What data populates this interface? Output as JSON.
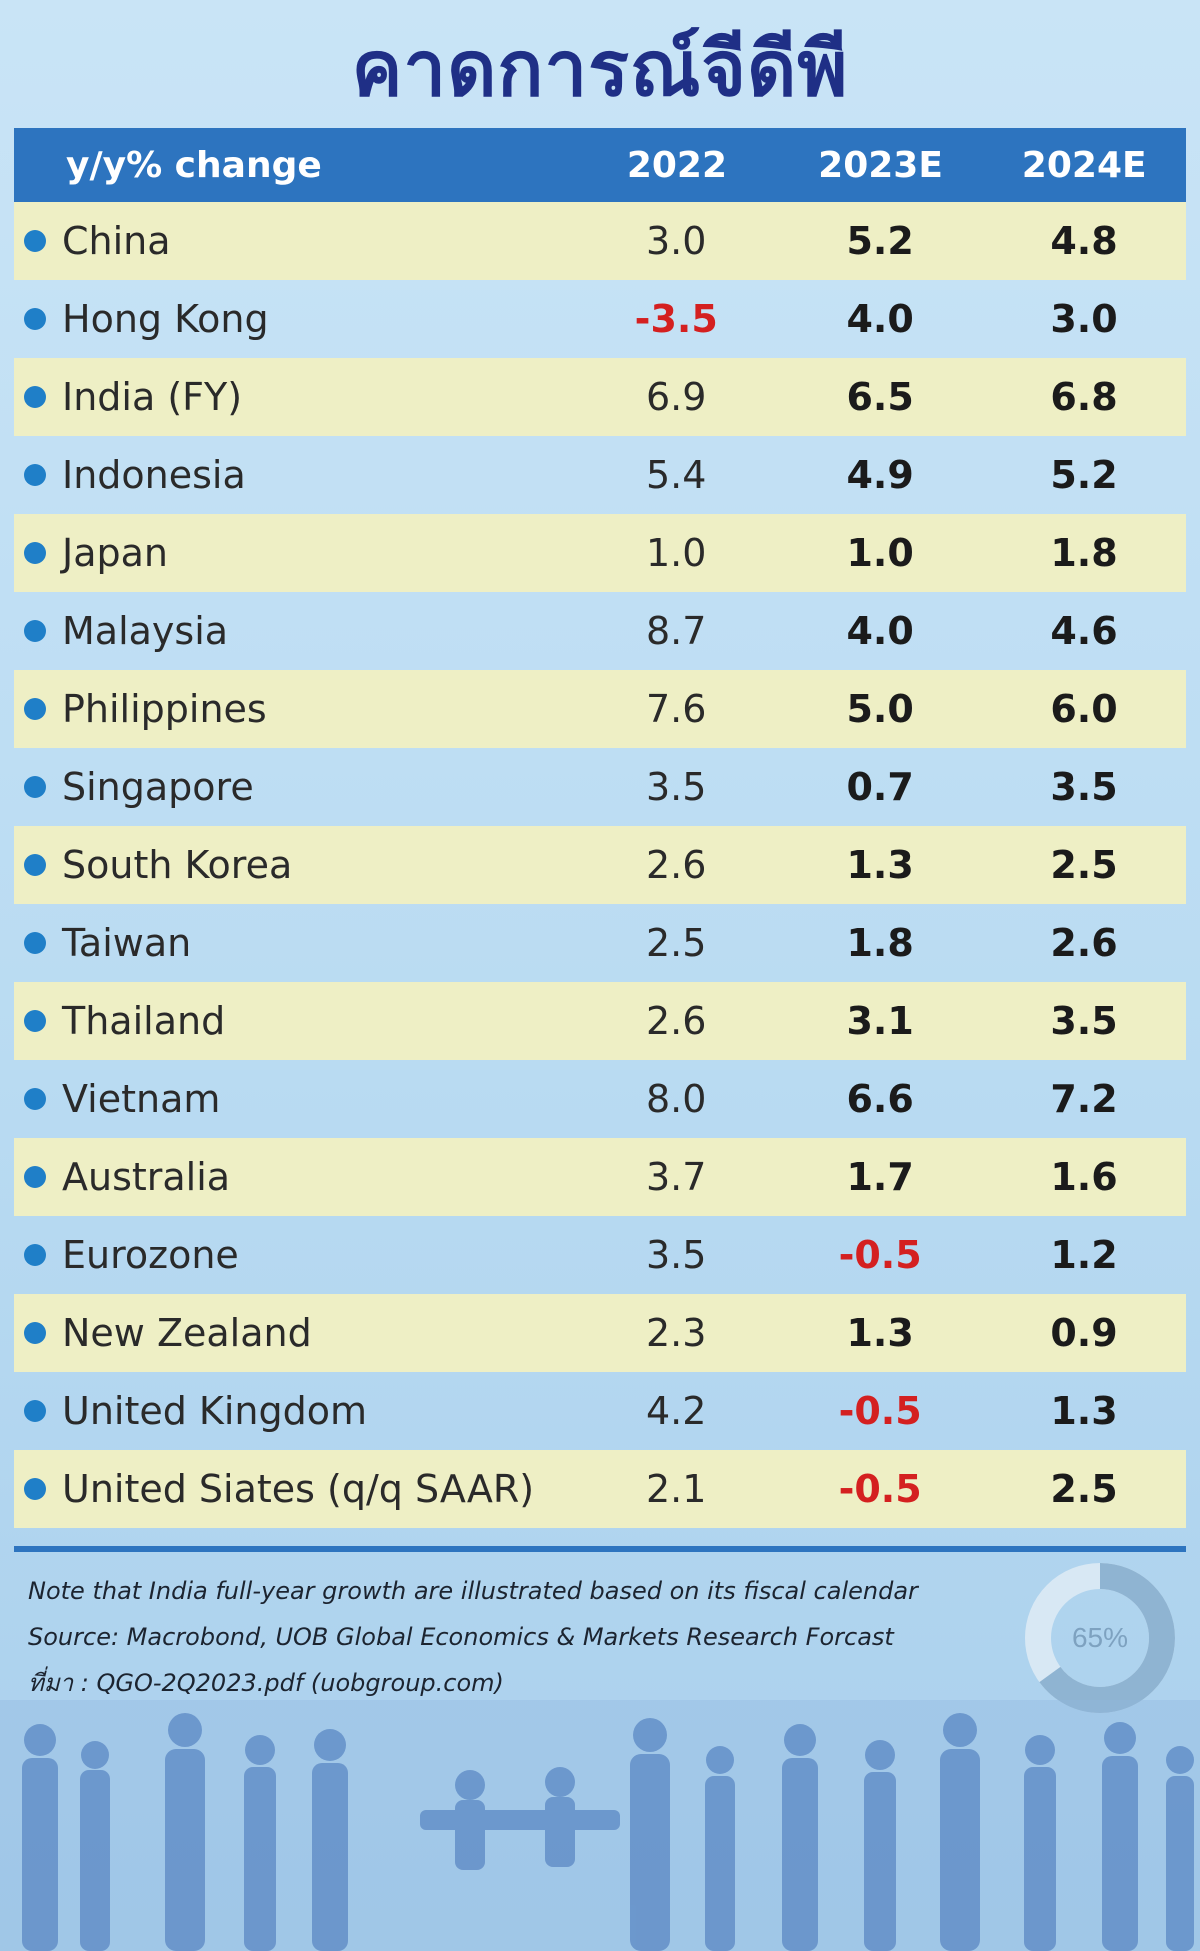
{
  "title": "คาดการณ์จีดีพี",
  "chart_data": {
    "type": "table",
    "columns": [
      "y/y% change",
      "2022",
      "2023E",
      "2024E"
    ],
    "rows": [
      {
        "country": "China",
        "values": [
          "3.0",
          "5.2",
          "4.8"
        ]
      },
      {
        "country": "Hong Kong",
        "values": [
          "-3.5",
          "4.0",
          "3.0"
        ]
      },
      {
        "country": "India (FY)",
        "values": [
          "6.9",
          "6.5",
          "6.8"
        ]
      },
      {
        "country": "Indonesia",
        "values": [
          "5.4",
          "4.9",
          "5.2"
        ]
      },
      {
        "country": "Japan",
        "values": [
          "1.0",
          "1.0",
          "1.8"
        ]
      },
      {
        "country": "Malaysia",
        "values": [
          "8.7",
          "4.0",
          "4.6"
        ]
      },
      {
        "country": "Philippines",
        "values": [
          "7.6",
          "5.0",
          "6.0"
        ]
      },
      {
        "country": "Singapore",
        "values": [
          "3.5",
          "0.7",
          "3.5"
        ]
      },
      {
        "country": "South Korea",
        "values": [
          "2.6",
          "1.3",
          "2.5"
        ]
      },
      {
        "country": "Taiwan",
        "values": [
          "2.5",
          "1.8",
          "2.6"
        ]
      },
      {
        "country": "Thailand",
        "values": [
          "2.6",
          "3.1",
          "3.5"
        ]
      },
      {
        "country": "Vietnam",
        "values": [
          "8.0",
          "6.6",
          "7.2"
        ]
      },
      {
        "country": "Australia",
        "values": [
          "3.7",
          "1.7",
          "1.6"
        ]
      },
      {
        "country": "Eurozone",
        "values": [
          "3.5",
          "-0.5",
          "1.2"
        ]
      },
      {
        "country": "New Zealand",
        "values": [
          "2.3",
          "1.3",
          "0.9"
        ]
      },
      {
        "country": "United Kingdom",
        "values": [
          "4.2",
          "-0.5",
          "1.3"
        ]
      },
      {
        "country": "United Siates (q/q SAAR)",
        "values": [
          "2.1",
          "-0.5",
          "2.5"
        ]
      }
    ]
  },
  "notes": {
    "line1": "Note that India full-year growth are illustrated based on its fiscal calendar",
    "line2": "Source: Macrobond, UOB Global Economics & Markets Research Forcast",
    "line3": "ที่มา : QGO-2Q2023.pdf (uobgroup.com)"
  },
  "decor": {
    "donut_label": "65%"
  },
  "colors": {
    "header_blue": "#2d74bf",
    "row_stripe": "#eeefc5",
    "negative": "#d42020",
    "dot": "#1f7fc8",
    "title": "#1f2f86"
  }
}
